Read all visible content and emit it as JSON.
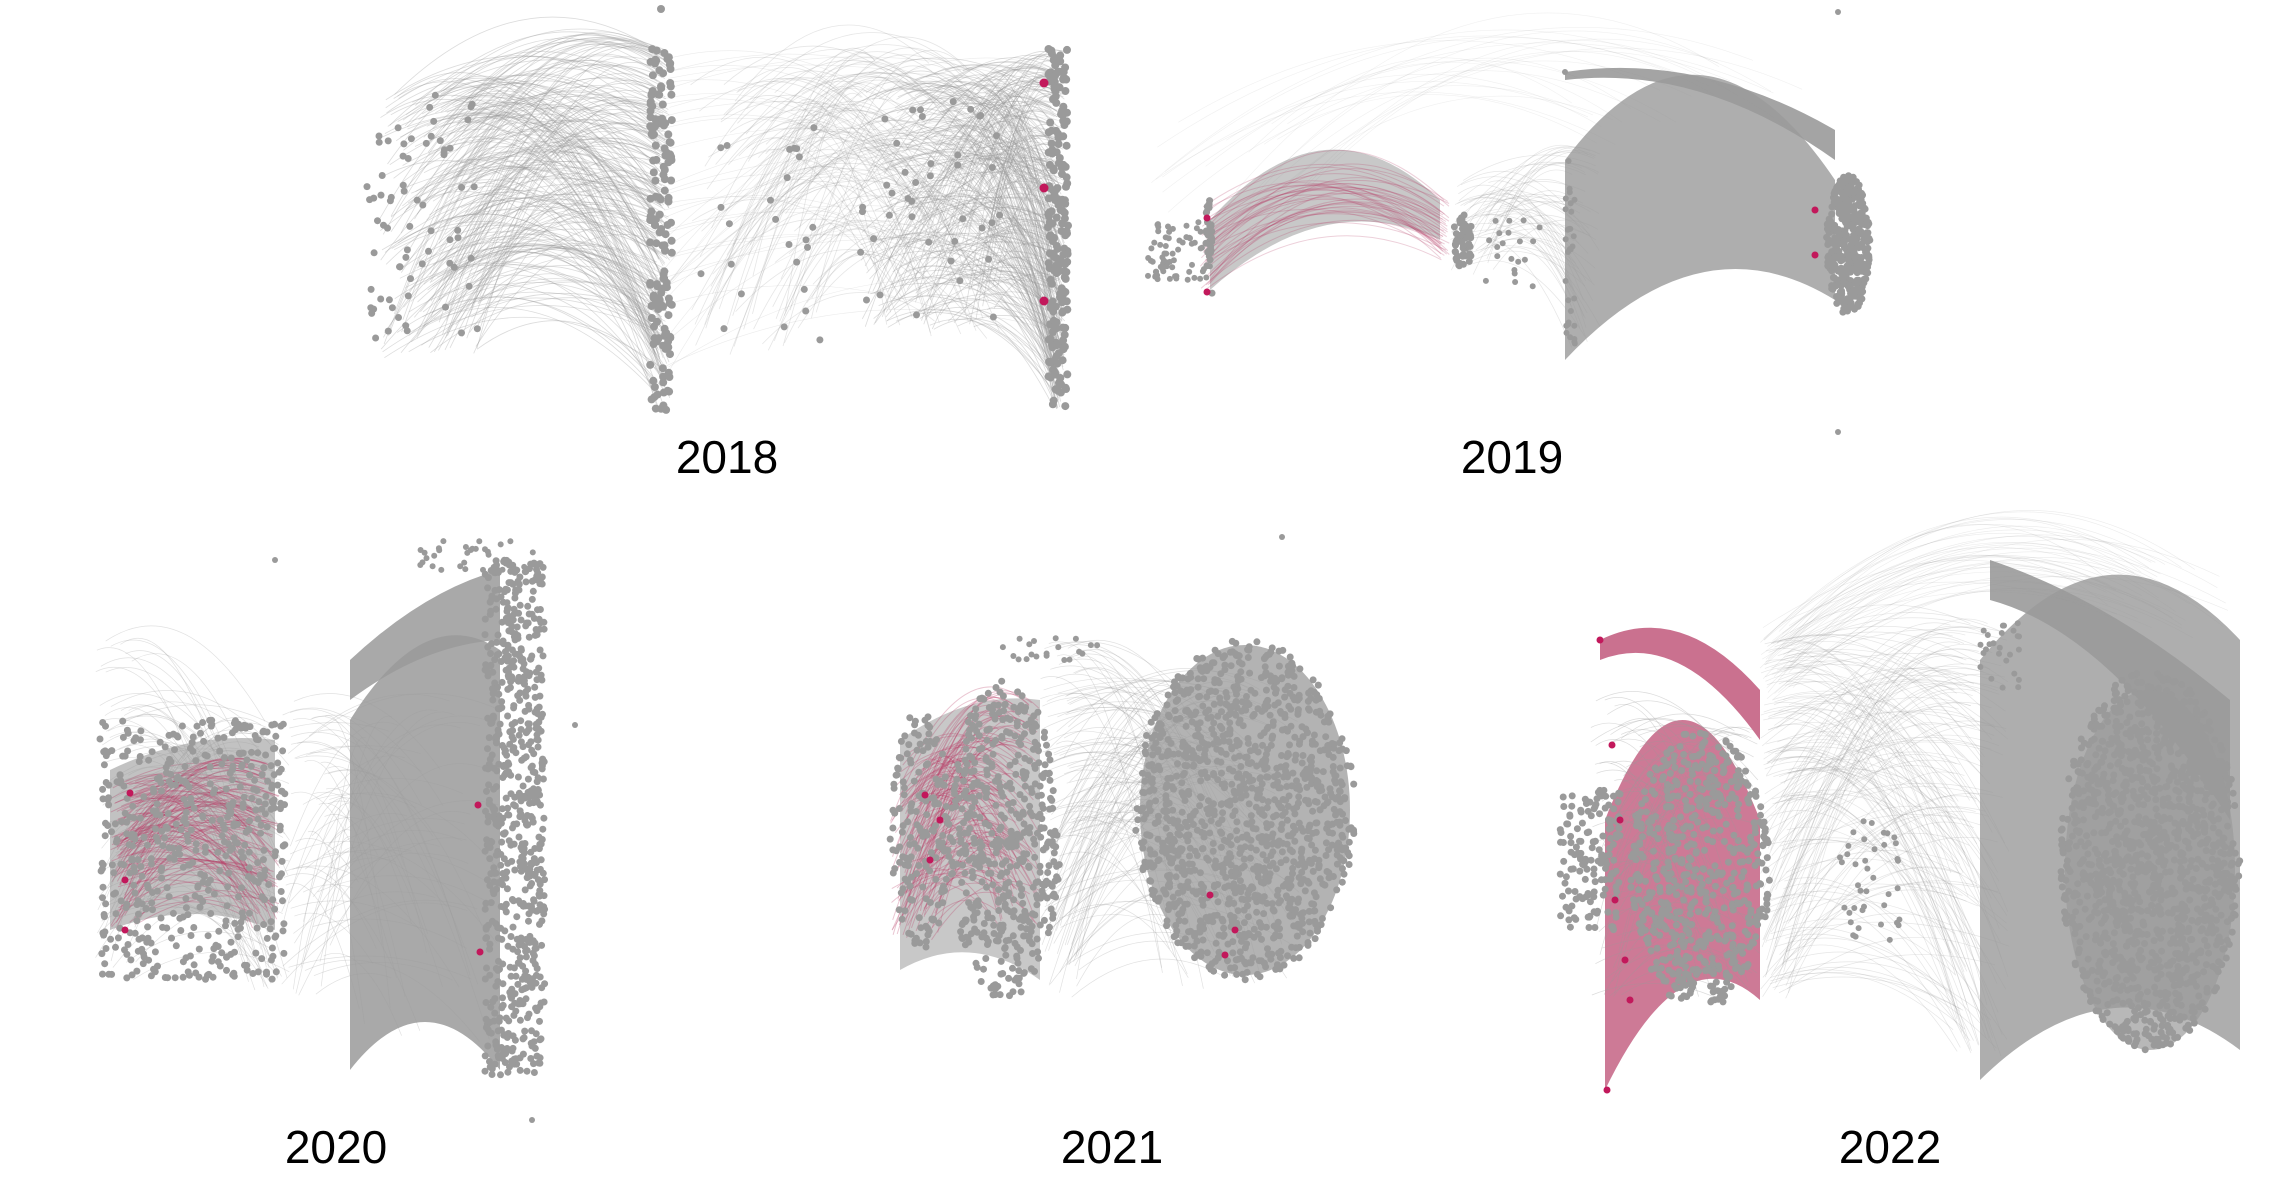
{
  "figure": {
    "colors": {
      "node": "#9a9a9a",
      "edge": "#9a9a9a",
      "highlight": "#b8426a",
      "highlight_node": "#c2185b",
      "background": "#ffffff"
    },
    "panels": [
      {
        "id": "2018",
        "label": "2018"
      },
      {
        "id": "2019",
        "label": "2019"
      },
      {
        "id": "2020",
        "label": "2020"
      },
      {
        "id": "2021",
        "label": "2021"
      },
      {
        "id": "2022",
        "label": "2022"
      }
    ]
  }
}
